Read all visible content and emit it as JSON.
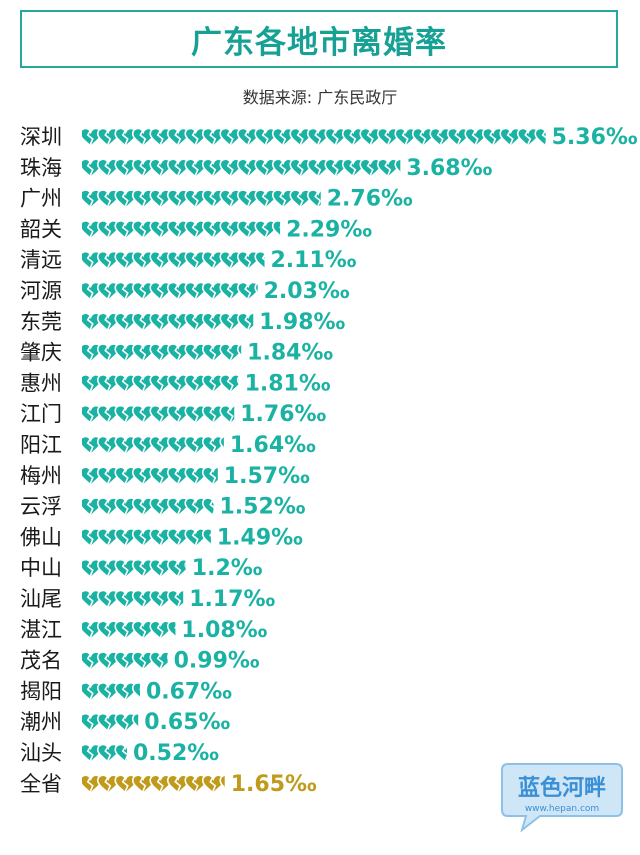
{
  "title": "广东各地市离婚率",
  "source": "数据来源: 广东民政厅",
  "watermark": {
    "name": "蓝色河畔",
    "url": "www.hepan.com"
  },
  "colors": {
    "series": "#1ab2a3",
    "total": "#c09a1a",
    "text": "#1a1a1a"
  },
  "chart_data": {
    "type": "bar",
    "mark": "broken-heart-pictogram",
    "unit": "‰",
    "categories": [
      "深圳",
      "珠海",
      "广州",
      "韶关",
      "清远",
      "河源",
      "东莞",
      "肇庆",
      "惠州",
      "江门",
      "阳江",
      "梅州",
      "云浮",
      "佛山",
      "中山",
      "汕尾",
      "湛江",
      "茂名",
      "揭阳",
      "潮州",
      "汕头",
      "全省"
    ],
    "values": [
      5.36,
      3.68,
      2.76,
      2.29,
      2.11,
      2.03,
      1.98,
      1.84,
      1.81,
      1.76,
      1.64,
      1.57,
      1.52,
      1.49,
      1.2,
      1.17,
      1.08,
      0.99,
      0.67,
      0.65,
      0.52,
      1.65
    ],
    "labels": [
      "5.36‰",
      "3.68‰",
      "2.76‰",
      "2.29‰",
      "2.11‰",
      "2.03‰",
      "1.98‰",
      "1.84‰",
      "1.81‰",
      "1.76‰",
      "1.64‰",
      "1.57‰",
      "1.52‰",
      "1.49‰",
      "1.2‰",
      "1.17‰",
      "1.08‰",
      "0.99‰",
      "0.67‰",
      "0.65‰",
      "0.52‰",
      "1.65‰"
    ],
    "highlight": "全省"
  }
}
